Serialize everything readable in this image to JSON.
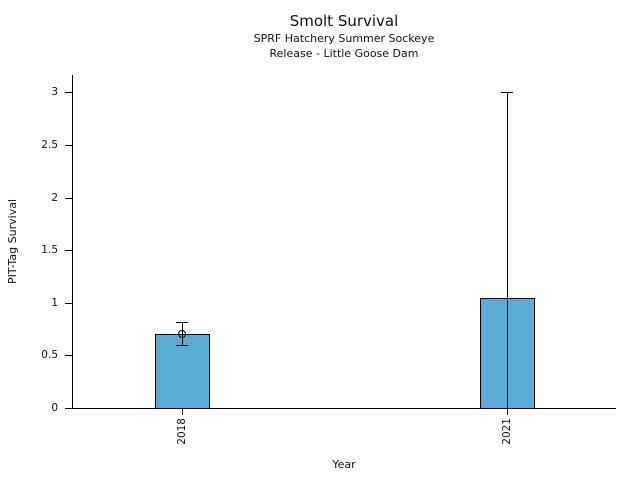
{
  "chart_data": {
    "type": "bar",
    "title": "Smolt Survival",
    "subtitle1": "SPRF Hatchery Summer Sockeye",
    "subtitle2": "Release - Little Goose Dam",
    "xlabel": "Year",
    "ylabel": "PIT-Tag Survival",
    "categories": [
      "2018",
      "2021"
    ],
    "values": [
      0.7,
      1.05
    ],
    "error_low": [
      0.6,
      0.0
    ],
    "error_high": [
      0.82,
      3.0
    ],
    "markers": [
      0.7,
      null
    ],
    "yticks": [
      0,
      0.5,
      1,
      1.5,
      2,
      2.5,
      3
    ],
    "ytick_labels": [
      "0",
      "0.5",
      "1",
      "1.5",
      "2",
      "2.5",
      "3"
    ],
    "ylim": [
      0,
      3.17
    ],
    "grid": false,
    "legend": null,
    "bar_fill_color": "#5AABD5",
    "bar_edge_color": "#000000",
    "axis_color": "#000000",
    "background_color": "#FFFFFF"
  }
}
